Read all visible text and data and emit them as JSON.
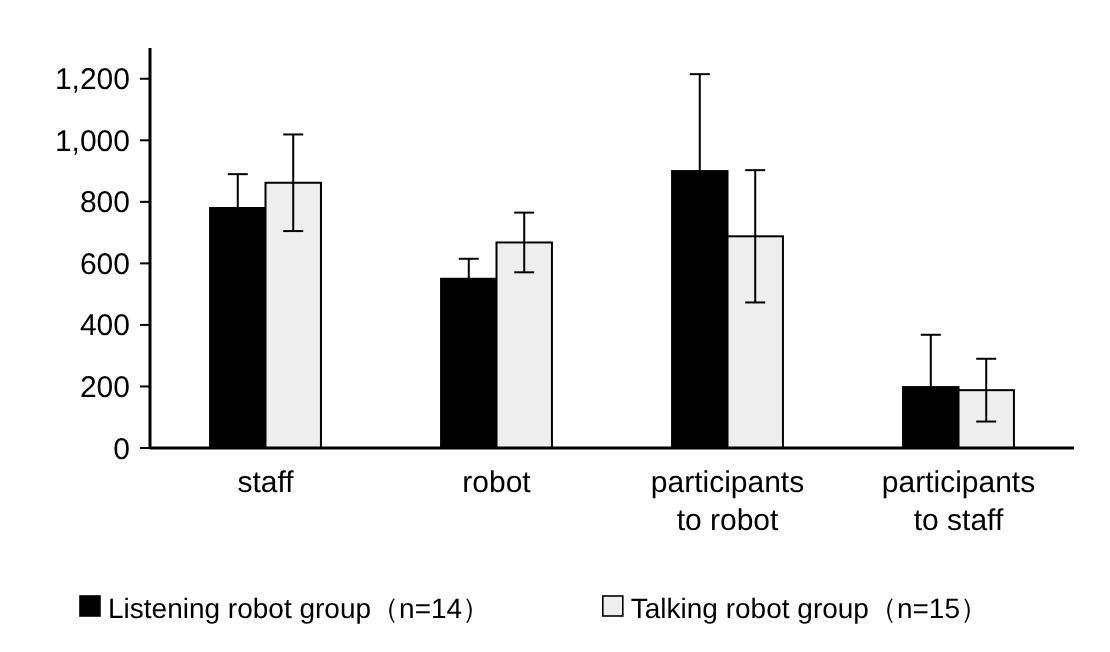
{
  "chart_data": {
    "type": "bar",
    "categories": [
      "staff",
      "robot",
      "participants\nto robot",
      "participants\nto staff"
    ],
    "series": [
      {
        "name": "Listening robot group（n=14）",
        "color": "#000000",
        "values": [
          780,
          550,
          900,
          198
        ],
        "errors": [
          110,
          65,
          315,
          170
        ]
      },
      {
        "name": "Talking robot group（n=15）",
        "color": "#eeeeee",
        "values": [
          862,
          668,
          688,
          188
        ],
        "errors": [
          157,
          97,
          215,
          102
        ]
      }
    ],
    "ylim": [
      0,
      1300
    ],
    "yticks": [
      0,
      200,
      400,
      600,
      800,
      {
        "value": 1000,
        "label": "1,000"
      },
      {
        "value": 1200,
        "label": "1,200"
      }
    ],
    "legend": "bottom",
    "grid": false
  }
}
